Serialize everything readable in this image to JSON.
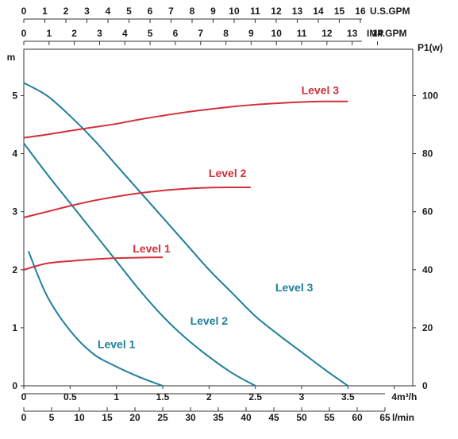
{
  "chart_data": {
    "type": "line",
    "x_axis": {
      "label": "m³/h",
      "range": [
        0,
        4.2
      ],
      "ticks": [
        {
          "value": 0,
          "label": "0"
        },
        {
          "value": 0.5,
          "label": "0.5"
        },
        {
          "value": 1,
          "label": "1"
        },
        {
          "value": 1.5,
          "label": "1.5"
        },
        {
          "value": 2,
          "label": "2"
        },
        {
          "value": 2.5,
          "label": "2.5"
        },
        {
          "value": 3,
          "label": "3"
        },
        {
          "value": 3.5,
          "label": "3.5"
        },
        {
          "value": 4,
          "label": "4"
        }
      ]
    },
    "x_axis_lmin": {
      "label": "l/min",
      "ticks": [
        {
          "value": 0,
          "label": "0"
        },
        {
          "value": 5,
          "label": "5"
        },
        {
          "value": 10,
          "label": "10"
        },
        {
          "value": 15,
          "label": "15"
        },
        {
          "value": 20,
          "label": "20"
        },
        {
          "value": 25,
          "label": "25"
        },
        {
          "value": 30,
          "label": "30"
        },
        {
          "value": 35,
          "label": "35"
        },
        {
          "value": 40,
          "label": "40"
        },
        {
          "value": 45,
          "label": "45"
        },
        {
          "value": 50,
          "label": "50"
        },
        {
          "value": 55,
          "label": "55"
        },
        {
          "value": 60,
          "label": "60"
        },
        {
          "value": 65,
          "label": "65"
        }
      ]
    },
    "x_axis_usgpm": {
      "label": "U.S.GPM",
      "ticks": [
        {
          "value": 0,
          "label": "0"
        },
        {
          "value": 1,
          "label": "1"
        },
        {
          "value": 2,
          "label": "2"
        },
        {
          "value": 3,
          "label": "3"
        },
        {
          "value": 4,
          "label": "4"
        },
        {
          "value": 5,
          "label": "5"
        },
        {
          "value": 6,
          "label": "6"
        },
        {
          "value": 7,
          "label": "7"
        },
        {
          "value": 8,
          "label": "8"
        },
        {
          "value": 9,
          "label": "9"
        },
        {
          "value": 10,
          "label": "10"
        },
        {
          "value": 11,
          "label": "11"
        },
        {
          "value": 12,
          "label": "12"
        },
        {
          "value": 13,
          "label": "13"
        },
        {
          "value": 14,
          "label": "14"
        },
        {
          "value": 15,
          "label": "15"
        },
        {
          "value": 16,
          "label": "16"
        }
      ]
    },
    "x_axis_impgpm": {
      "label": "IMP.GPM",
      "ticks": [
        {
          "value": 0,
          "label": "0"
        },
        {
          "value": 1,
          "label": "1"
        },
        {
          "value": 2,
          "label": "2"
        },
        {
          "value": 3,
          "label": "3"
        },
        {
          "value": 4,
          "label": "4"
        },
        {
          "value": 5,
          "label": "5"
        },
        {
          "value": 6,
          "label": "6"
        },
        {
          "value": 7,
          "label": "7"
        },
        {
          "value": 8,
          "label": "8"
        },
        {
          "value": 9,
          "label": "9"
        },
        {
          "value": 10,
          "label": "10"
        },
        {
          "value": 11,
          "label": "11"
        },
        {
          "value": 12,
          "label": "12"
        },
        {
          "value": 13,
          "label": "13"
        },
        {
          "value": 14,
          "label": "14"
        }
      ]
    },
    "y_axis_left": {
      "label": "m",
      "range": [
        0,
        5.8
      ],
      "ticks": [
        {
          "value": 0,
          "label": "0"
        },
        {
          "value": 1,
          "label": "1"
        },
        {
          "value": 2,
          "label": "2"
        },
        {
          "value": 3,
          "label": "3"
        },
        {
          "value": 4,
          "label": "4"
        },
        {
          "value": 5,
          "label": "5"
        }
      ]
    },
    "y_axis_right": {
      "label": "P1(w)",
      "range": [
        0,
        116
      ],
      "ticks": [
        {
          "value": 0,
          "label": "0"
        },
        {
          "value": 20,
          "label": "20"
        },
        {
          "value": 40,
          "label": "40"
        },
        {
          "value": 60,
          "label": "60"
        },
        {
          "value": 80,
          "label": "80"
        },
        {
          "value": 100,
          "label": "100"
        }
      ]
    },
    "grid": true,
    "head_series": [
      {
        "name": "Level 1",
        "color": "#1e7f9a",
        "label_at": [
          1.0,
          0.65
        ],
        "points": [
          [
            0.05,
            2.32
          ],
          [
            0.25,
            1.55
          ],
          [
            0.5,
            0.95
          ],
          [
            0.75,
            0.55
          ],
          [
            1.0,
            0.33
          ],
          [
            1.25,
            0.15
          ],
          [
            1.5,
            0.0
          ]
        ]
      },
      {
        "name": "Level 2",
        "color": "#1e7f9a",
        "label_at": [
          2.0,
          1.05
        ],
        "points": [
          [
            0.0,
            4.18
          ],
          [
            0.25,
            3.65
          ],
          [
            0.5,
            3.15
          ],
          [
            0.75,
            2.65
          ],
          [
            1.0,
            2.15
          ],
          [
            1.25,
            1.65
          ],
          [
            1.5,
            1.2
          ],
          [
            1.75,
            0.82
          ],
          [
            2.0,
            0.5
          ],
          [
            2.25,
            0.22
          ],
          [
            2.5,
            0.0
          ]
        ]
      },
      {
        "name": "Level 3",
        "color": "#1e7f9a",
        "label_at": [
          2.92,
          1.63
        ],
        "points": [
          [
            0.0,
            5.22
          ],
          [
            0.25,
            5.0
          ],
          [
            0.5,
            4.65
          ],
          [
            0.75,
            4.25
          ],
          [
            1.0,
            3.8
          ],
          [
            1.25,
            3.35
          ],
          [
            1.5,
            2.9
          ],
          [
            1.75,
            2.45
          ],
          [
            2.0,
            2.0
          ],
          [
            2.25,
            1.6
          ],
          [
            2.5,
            1.2
          ],
          [
            2.75,
            0.88
          ],
          [
            3.0,
            0.58
          ],
          [
            3.25,
            0.28
          ],
          [
            3.5,
            0.0
          ]
        ]
      }
    ],
    "power_series": [
      {
        "name": "Level 1",
        "color": "#d32f3a",
        "label_at": [
          1.38,
          2.3
        ],
        "points": [
          [
            0.0,
            40.0
          ],
          [
            0.25,
            42.2
          ],
          [
            0.5,
            43.0
          ],
          [
            0.75,
            43.6
          ],
          [
            1.0,
            44.0
          ],
          [
            1.25,
            44.2
          ],
          [
            1.5,
            44.3
          ]
        ]
      },
      {
        "name": "Level 2",
        "color": "#d32f3a",
        "label_at": [
          2.2,
          3.6
        ],
        "points": [
          [
            0.0,
            58.0
          ],
          [
            0.25,
            60.0
          ],
          [
            0.5,
            62.0
          ],
          [
            0.75,
            63.8
          ],
          [
            1.0,
            65.2
          ],
          [
            1.25,
            66.4
          ],
          [
            1.5,
            67.3
          ],
          [
            1.75,
            67.9
          ],
          [
            2.0,
            68.3
          ],
          [
            2.25,
            68.4
          ],
          [
            2.45,
            68.4
          ]
        ]
      },
      {
        "name": "Level 3",
        "color": "#d32f3a",
        "label_at": [
          3.2,
          5.03
        ],
        "points": [
          [
            0.0,
            85.5
          ],
          [
            0.25,
            86.6
          ],
          [
            0.5,
            87.9
          ],
          [
            0.75,
            89.1
          ],
          [
            1.0,
            90.3
          ],
          [
            1.25,
            91.8
          ],
          [
            1.5,
            93.1
          ],
          [
            1.75,
            94.3
          ],
          [
            2.0,
            95.3
          ],
          [
            2.25,
            96.2
          ],
          [
            2.5,
            96.9
          ],
          [
            2.75,
            97.4
          ],
          [
            3.0,
            97.8
          ],
          [
            3.25,
            98.0
          ],
          [
            3.5,
            98.0
          ]
        ]
      }
    ]
  }
}
